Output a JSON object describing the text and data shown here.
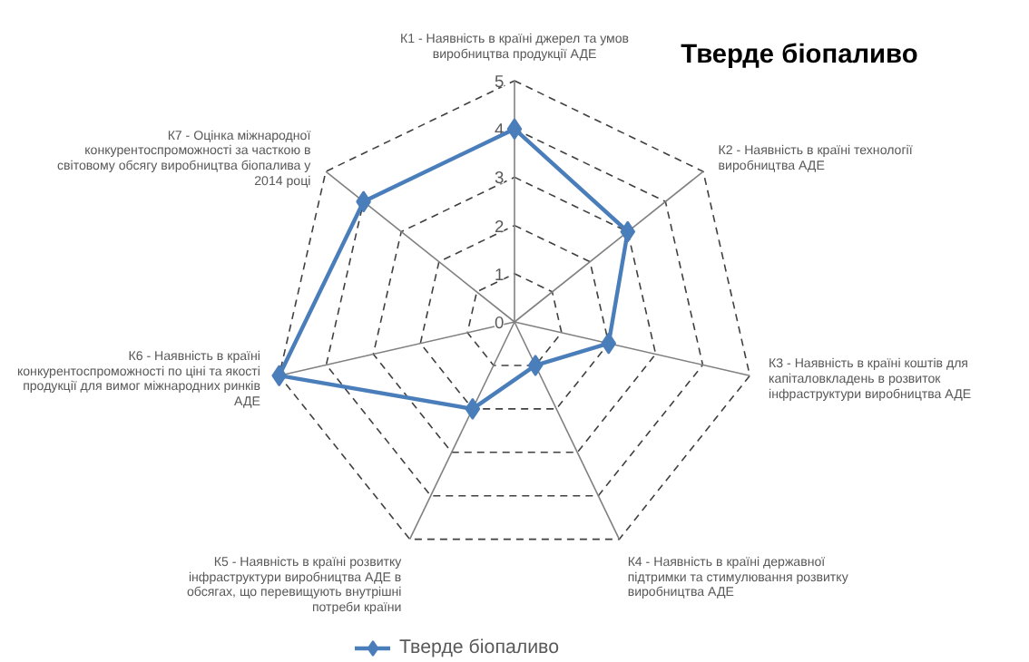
{
  "chart_data": {
    "type": "radar",
    "title": "Тверде біопаливо",
    "categories": [
      "К1 - Наявність в країні джерел та умов виробництва продукції АДЕ",
      "К2 - Наявність в країні технології виробництва АДЕ",
      "К3 - Наявність в країні коштів для капіталовкладень в розвиток інфраструктури виробництва АДЕ",
      "К4 - Наявність в країні державної підтримки та стимулювання розвитку виробництва АДЕ",
      "К5 - Наявність в країні розвитку інфраструктури виробництва АДЕ в обсягах, що перевищують внутрішні потреби країни",
      "К6 - Наявність в країні конкурентоспроможності по ціні та якості продукції для вимог міжнародних ринків АДЕ",
      "К7 - Оцінка міжнародної конкурентоспроможності за часткою в світовому обсягу виробництва біопалива у 2014 році"
    ],
    "series": [
      {
        "name": "Тверде біопаливо",
        "color": "#4a7ebb",
        "values": [
          4,
          3,
          2,
          1,
          2,
          5,
          4
        ]
      }
    ],
    "ylim": [
      0,
      5
    ],
    "yticks": [
      0,
      1,
      2,
      3,
      4,
      5
    ],
    "grid": true,
    "legend": "bottom",
    "marker": "diamond",
    "line_style": "solid"
  }
}
